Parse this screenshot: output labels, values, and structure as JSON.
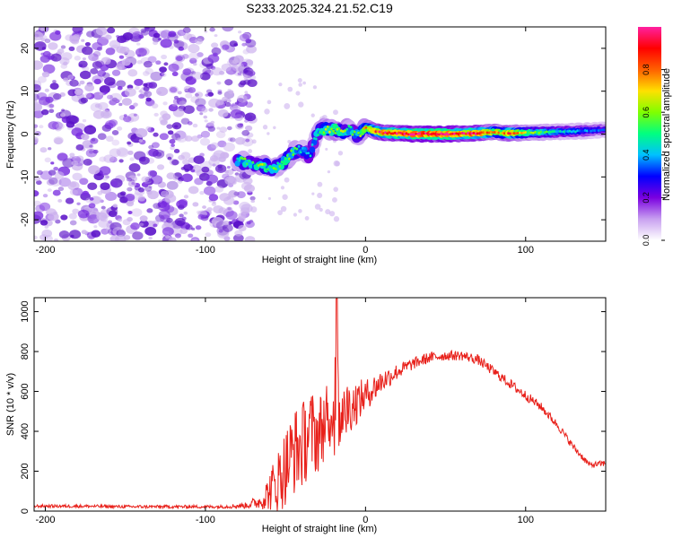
{
  "title": "S233.2025.324.21.52.C19",
  "colors": {
    "snr_line": "#e8201a",
    "frame": "#000000",
    "low_intensity": "#cdb3ee",
    "mid_intensity": "#7a2ee0",
    "dark_intensity": "#5a10c8"
  },
  "chart_data": [
    {
      "type": "heatmap",
      "xlabel": "Height of straight line (km)",
      "ylabel": "Frequency (Hz)",
      "xlim": [
        -207,
        150
      ],
      "ylim": [
        -25,
        25
      ],
      "xticks": [
        -200,
        -100,
        0,
        100
      ],
      "yticks": [
        -20,
        -10,
        0,
        10,
        20
      ],
      "colorbar": {
        "label": "Normalized spectral amplitude",
        "range": [
          0,
          1
        ],
        "ticks": [
          "0.0",
          "0.2",
          "0.4",
          "0.6",
          "0.8"
        ],
        "tick_values": [
          0,
          0.2,
          0.4,
          0.6,
          0.8
        ],
        "palette": [
          "#ffffff",
          "#c8a0f0",
          "#7a00e0",
          "#0000ff",
          "#00c0ff",
          "#00ff80",
          "#80ff00",
          "#ffe000",
          "#ff6000",
          "#ff0000",
          "#ff20a0"
        ]
      },
      "ridge": {
        "x": [
          -80,
          -75,
          -70,
          -65,
          -60,
          -55,
          -50,
          -45,
          -40,
          -35,
          -30,
          -25,
          -20,
          -15,
          -10,
          -5,
          0,
          5,
          10,
          20,
          30,
          50,
          70,
          80,
          85,
          90,
          100,
          120,
          140,
          150
        ],
        "y": [
          -6.2,
          -6.5,
          -7.3,
          -7.0,
          -8.0,
          -7.5,
          -6.3,
          -4.0,
          -3.5,
          -5.0,
          0.5,
          1.2,
          1.0,
          0.8,
          1.2,
          -0.5,
          1.5,
          0.8,
          0.3,
          0.2,
          0.0,
          0.0,
          0.2,
          0.5,
          0.3,
          0.2,
          0.3,
          0.5,
          0.8,
          1.0
        ],
        "amplitude": [
          0.45,
          0.55,
          0.5,
          0.6,
          0.55,
          0.5,
          0.6,
          0.55,
          0.45,
          0.4,
          0.5,
          0.6,
          0.65,
          0.6,
          0.55,
          0.5,
          0.7,
          0.8,
          0.9,
          0.95,
          1.0,
          1.0,
          0.95,
          0.75,
          0.7,
          0.85,
          0.6,
          0.45,
          0.35,
          0.3
        ]
      },
      "noise_region_x": [
        -207,
        -70
      ]
    },
    {
      "type": "line",
      "xlabel": "Height of straight line (km)",
      "ylabel": "SNR (10 * v/v)",
      "xlim": [
        -207,
        150
      ],
      "ylim": [
        0,
        1070
      ],
      "xticks": [
        -200,
        -100,
        0,
        100
      ],
      "yticks": [
        0,
        200,
        400,
        600,
        800,
        1000
      ],
      "series": [
        {
          "name": "SNR",
          "x": [
            -207,
            -180,
            -150,
            -120,
            -90,
            -75,
            -65,
            -55,
            -50,
            -45,
            -40,
            -35,
            -30,
            -25,
            -20,
            -18,
            -15,
            -10,
            -5,
            0,
            10,
            20,
            30,
            40,
            50,
            60,
            70,
            80,
            90,
            100,
            110,
            120,
            130,
            140,
            150
          ],
          "envelope": [
            25,
            25,
            22,
            22,
            22,
            28,
            50,
            150,
            220,
            300,
            320,
            400,
            380,
            450,
            480,
            520,
            500,
            520,
            550,
            580,
            650,
            700,
            740,
            770,
            780,
            780,
            760,
            700,
            640,
            580,
            520,
            430,
            320,
            230,
            240
          ],
          "spread": [
            8,
            8,
            8,
            8,
            8,
            15,
            40,
            160,
            200,
            220,
            220,
            220,
            200,
            180,
            160,
            400,
            150,
            130,
            110,
            80,
            60,
            40,
            30,
            28,
            25,
            25,
            25,
            25,
            25,
            25,
            22,
            20,
            18,
            15,
            15
          ]
        }
      ]
    }
  ]
}
